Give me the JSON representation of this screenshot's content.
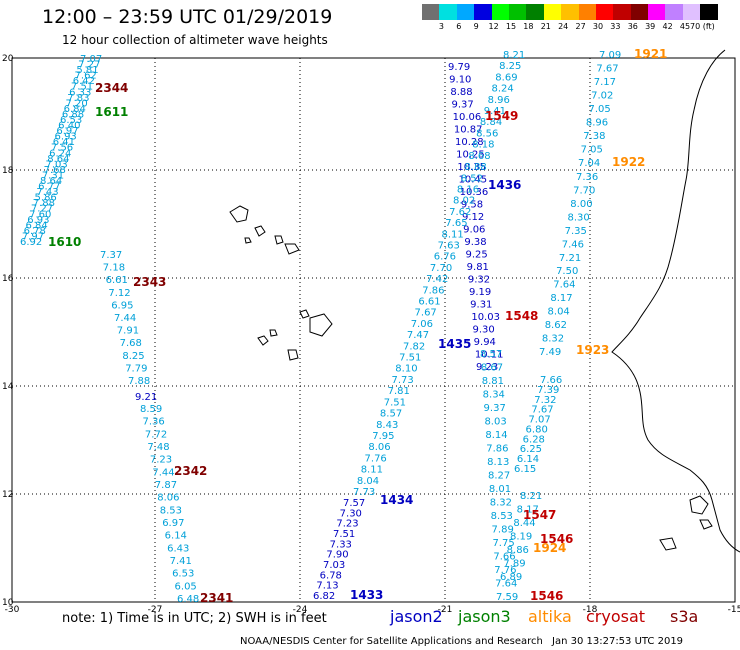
{
  "title": "12:00 – 23:59 UTC 01/29/2019",
  "subtitle": "12 hour collection of altimeter wave heights",
  "colorbar": {
    "colors": [
      "#707070",
      "#00e0e0",
      "#00a8ff",
      "#0000e0",
      "#00ff00",
      "#00c000",
      "#008000",
      "#ffff00",
      "#ffc000",
      "#ff8000",
      "#ff0000",
      "#c00000",
      "#800000",
      "#ff00ff",
      "#c080ff",
      "#e0c0ff",
      "#000000"
    ],
    "labels": [
      "3",
      "6",
      "9",
      "12",
      "15",
      "18",
      "21",
      "24",
      "27",
      "30",
      "33",
      "36",
      "39",
      "42",
      "45",
      "70 (ft)"
    ]
  },
  "axis": {
    "lat_labels": [
      "20",
      "18",
      "16",
      "14",
      "12",
      "10"
    ],
    "lon_labels": [
      "-30",
      "-27",
      "-24",
      "-21",
      "-18",
      "-15"
    ]
  },
  "colors": {
    "jason2": "#0000c0",
    "jason3": "#008000",
    "altika": "#ff8c00",
    "cryosat": "#c00000",
    "s3a": "#800000",
    "swh": "#00a0d8"
  },
  "tracks": [
    {
      "sat": "s3a",
      "pass": "2344",
      "values": [
        "7.07",
        "7.27",
        "5.81",
        "7.62",
        "6.42",
        "7.51",
        "6.33",
        "7.83",
        "7.20",
        "6.84",
        "6.88",
        "6.53",
        "6.40",
        "6.97",
        "6.93",
        "6.41",
        "7.56",
        "6.24",
        "8.64",
        "7.03",
        "7.68",
        "7.31",
        "8.64",
        "6.77",
        "7.43",
        "5.86",
        "7.88",
        "7.27",
        "7.60",
        "6.93",
        "6.84",
        "6.78",
        "7.97",
        "6.92"
      ]
    },
    {
      "sat": "jason3",
      "pass": "1611",
      "values": []
    },
    {
      "sat": "jason3",
      "pass": "1610",
      "values": []
    },
    {
      "sat": "s3a",
      "pass": "2343",
      "values": [
        "7.37",
        "7.18",
        "6.61",
        "7.12",
        "6.95",
        "7.44",
        "7.91",
        "7.68",
        "8.25",
        "7.79",
        "7.88"
      ]
    },
    {
      "sat": "jason2",
      "pass": "",
      "values": [
        "9.21"
      ]
    },
    {
      "sat": "s3a",
      "pass": "2342",
      "values": [
        "8.59",
        "7.36",
        "7.72",
        "7.48",
        "7.23",
        "7.44",
        "7.87",
        "8.06",
        "8.53",
        "6.97",
        "6.14",
        "6.43",
        "7.41",
        "6.53",
        "6.05",
        "6.48"
      ]
    },
    {
      "sat": "s3a",
      "pass": "2341",
      "values": []
    },
    {
      "sat": "jason2",
      "pass": "1436",
      "values": [
        "9.79",
        "9.10",
        "8.88",
        "9.37",
        "10.06",
        "10.87",
        "10.28",
        "10.25",
        "10.35",
        "10.45",
        "10.36",
        "9.58",
        "9.12",
        "9.06",
        "9.38",
        "9.25",
        "9.81",
        "9.32",
        "9.19",
        "9.31",
        "10.03",
        "9.30",
        "9.94",
        "10.11",
        "9.23"
      ]
    },
    {
      "sat": "swh",
      "pass": "",
      "values": [
        "8.21",
        "8.25",
        "8.69",
        "8.24",
        "8.96",
        "9.41",
        "8.84",
        "8.56",
        "8.18",
        "8.68",
        "8.88",
        "8.52",
        "8.16",
        "8.02",
        "7.62",
        "7.65",
        "8.11",
        "7.63",
        "6.76",
        "7.70",
        "7.42",
        "7.86",
        "6.61",
        "7.67",
        "7.06",
        "7.47",
        "7.82",
        "7.51",
        "8.10",
        "7.73",
        "7.81",
        "7.51",
        "8.57",
        "8.43",
        "7.95",
        "8.06",
        "7.76",
        "8.11",
        "8.04",
        "7.73"
      ]
    },
    {
      "sat": "jason2",
      "pass": "1435",
      "values": []
    },
    {
      "sat": "cryosat",
      "pass": "1549",
      "values": []
    },
    {
      "sat": "cryosat",
      "pass": "1548",
      "values": []
    },
    {
      "sat": "jason2",
      "pass": "1434",
      "values": [
        "7.57",
        "7.30",
        "7.23",
        "7.51",
        "7.33",
        "7.90",
        "7.03",
        "6.78",
        "7.13",
        "6.82"
      ]
    },
    {
      "sat": "jason2",
      "pass": "1433",
      "values": []
    },
    {
      "sat": "swh",
      "pass": "",
      "values": [
        "8.57",
        "8.67",
        "8.81",
        "8.34",
        "9.37",
        "8.03",
        "8.14",
        "7.86",
        "8.13",
        "8.27",
        "8.01",
        "8.32",
        "8.53",
        "7.89",
        "7.75",
        "7.66",
        "7.76",
        "7.64",
        "7.59"
      ]
    },
    {
      "sat": "cryosat",
      "pass": "1547",
      "values": [
        "8.21",
        "8.17",
        "8.44",
        "8.19",
        "8.86",
        "7.89",
        "6.89"
      ]
    },
    {
      "sat": "cryosat",
      "pass": "1546",
      "values": []
    },
    {
      "sat": "cryosat",
      "pass": "1546",
      "values": []
    },
    {
      "sat": "altika",
      "pass": "1921",
      "values": [
        "7.09",
        "7.67",
        "7.17",
        "7.02",
        "7.05",
        "8.96",
        "7.38",
        "7.05",
        "7.04"
      ]
    },
    {
      "sat": "altika",
      "pass": "1922",
      "values": [
        "7.36",
        "7.70",
        "8.00",
        "8.30",
        "7.35",
        "7.46",
        "7.21",
        "7.50",
        "7.64",
        "8.17",
        "8.04",
        "8.62",
        "8.32",
        "7.49"
      ]
    },
    {
      "sat": "altika",
      "pass": "1923",
      "values": [
        "7.66",
        "7.39",
        "7.32",
        "7.67",
        "7.07",
        "6.80",
        "6.28",
        "6.25",
        "6.14",
        "6.15"
      ]
    },
    {
      "sat": "altika",
      "pass": "1924",
      "values": []
    }
  ],
  "note": "note: 1) Time is in UTC; 2) SWH is in feet",
  "legend": [
    {
      "label": "jason2",
      "color": "#0000c0"
    },
    {
      "label": "jason3",
      "color": "#008000"
    },
    {
      "label": "altika",
      "color": "#ff8c00"
    },
    {
      "label": "cryosat",
      "color": "#c00000"
    },
    {
      "label": "s3a",
      "color": "#800000"
    }
  ],
  "credit": "NOAA/NESDIS Center for Satellite Applications and Research",
  "timestamp": "Jan 30 13:27:53 UTC 2019"
}
